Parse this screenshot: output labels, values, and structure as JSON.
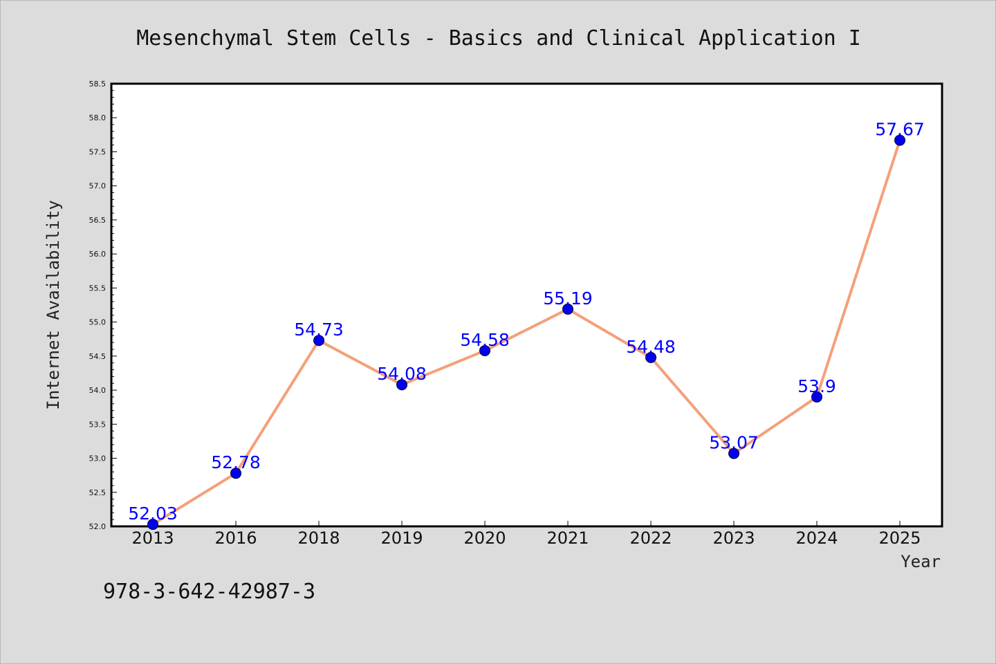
{
  "chart_data": {
    "type": "line",
    "title": "Mesenchymal Stem Cells - Basics and Clinical Application I",
    "xlabel": "Year",
    "ylabel": "Internet Availability",
    "categories": [
      "2013",
      "2016",
      "2018",
      "2019",
      "2020",
      "2021",
      "2022",
      "2023",
      "2024",
      "2025"
    ],
    "series": [
      {
        "values": [
          52.03,
          52.78,
          54.73,
          54.08,
          54.58,
          55.19,
          54.48,
          53.07,
          53.9,
          57.67
        ]
      }
    ],
    "data_labels": [
      "52.03",
      "52.78",
      "54.73",
      "54.08",
      "54.58",
      "55.19",
      "54.48",
      "53.07",
      "53.9",
      "57.67"
    ],
    "ylim": [
      52.0,
      58.5
    ],
    "yticks": [
      "52.0",
      "52.5",
      "53.0",
      "53.5",
      "54.0",
      "54.5",
      "55.0",
      "55.5",
      "56.0",
      "56.5",
      "57.0",
      "57.5",
      "58.0",
      "58.5"
    ],
    "grid": false,
    "colors": {
      "line": "#f4a07a",
      "marker": "#0000ee",
      "data_label": "#0000ff",
      "background": "#dcdcdc",
      "plot_area": "#ffffff"
    }
  },
  "footer_text": "978-3-642-42987-3"
}
